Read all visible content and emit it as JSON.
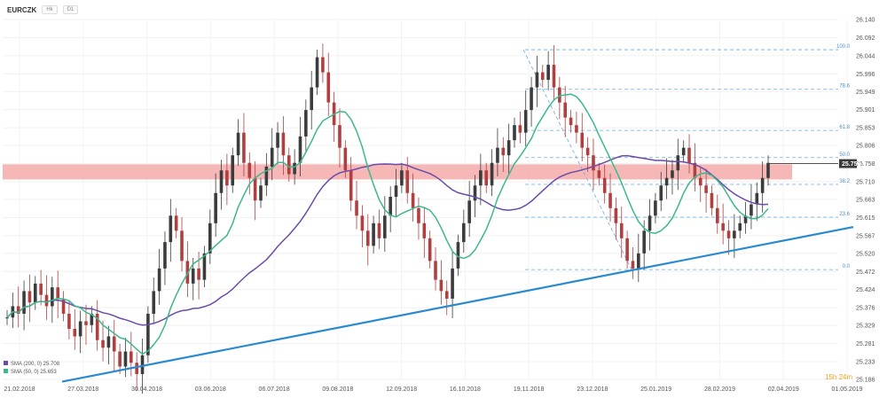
{
  "toolbar": {
    "symbol": "EURCZK",
    "chip1": "Hk",
    "chip2": "D1"
  },
  "timer": "15h 24m",
  "colors": {
    "bull": "#3c3c3c",
    "bear": "#b04040",
    "zone": "#f4a5a5",
    "sma200": "#6a4ca8",
    "sma50": "#3cb88c",
    "trend": "#2a8ad0",
    "fib": "#6aaae0",
    "tag": "#3a3a3a"
  },
  "legend": [
    {
      "label": "SMA (200, 0) 25.708",
      "color": "#6a4ca8"
    },
    {
      "label": "SMA (50, 0) 25.653",
      "color": "#3cb88c"
    }
  ],
  "chart_data": {
    "type": "candlestick",
    "symbol": "EURCZK",
    "x_ticks": [
      "21.02.2018",
      "27.03.2018",
      "30.04.2018",
      "03.06.2018",
      "06.07.2018",
      "09.08.2018",
      "12.09.2018",
      "16.10.2018",
      "19.11.2018",
      "23.12.2018",
      "25.01.2019",
      "28.02.2019",
      "02.04.2019",
      "01.05.2019"
    ],
    "y_ticks": [
      25.186,
      25.233,
      25.281,
      25.329,
      25.376,
      25.424,
      25.472,
      25.52,
      25.567,
      25.615,
      25.663,
      25.71,
      25.758,
      25.806,
      25.853,
      25.901,
      25.949,
      25.996,
      26.044,
      26.092,
      26.14
    ],
    "ylim": [
      25.186,
      26.14
    ],
    "last_price": 25.758,
    "resistance_zone": [
      25.716,
      25.756
    ],
    "trendline": [
      {
        "x": "27.03.2018",
        "y": 25.18
      },
      {
        "x": "end",
        "y": 25.59
      }
    ],
    "fibonacci": [
      {
        "label": "100.0",
        "value": 26.06
      },
      {
        "label": "78.6",
        "value": 25.955
      },
      {
        "label": "61.8",
        "value": 25.846
      },
      {
        "label": "50.0",
        "value": 25.774
      },
      {
        "label": "38.2",
        "value": 25.703
      },
      {
        "label": "23.6",
        "value": 25.616
      },
      {
        "label": "0.0",
        "value": 25.477
      }
    ],
    "close_series": [
      25.35,
      25.38,
      25.36,
      25.42,
      25.39,
      25.44,
      25.41,
      25.38,
      25.43,
      25.4,
      25.36,
      25.32,
      25.3,
      25.34,
      25.33,
      25.36,
      25.29,
      25.27,
      25.3,
      25.26,
      25.22,
      25.26,
      25.23,
      25.2,
      25.25,
      25.36,
      25.42,
      25.48,
      25.55,
      25.62,
      25.58,
      25.5,
      25.44,
      25.48,
      25.45,
      25.52,
      25.6,
      25.68,
      25.74,
      25.7,
      25.78,
      25.84,
      25.76,
      25.72,
      25.66,
      25.7,
      25.75,
      25.8,
      25.84,
      25.78,
      25.73,
      25.76,
      25.83,
      25.9,
      25.96,
      26.04,
      26.0,
      25.92,
      25.86,
      25.8,
      25.74,
      25.66,
      25.62,
      25.58,
      25.54,
      25.6,
      25.56,
      25.62,
      25.67,
      25.7,
      25.74,
      25.68,
      25.64,
      25.6,
      25.56,
      25.5,
      25.45,
      25.42,
      25.4,
      25.48,
      25.55,
      25.6,
      25.66,
      25.7,
      25.74,
      25.7,
      25.76,
      25.8,
      25.78,
      25.82,
      25.86,
      25.84,
      25.9,
      25.96,
      26.0,
      25.98,
      26.02,
      25.96,
      25.92,
      25.88,
      25.86,
      25.84,
      25.8,
      25.78,
      25.74,
      25.72,
      25.68,
      25.64,
      25.6,
      25.56,
      25.5,
      25.48,
      25.52,
      25.58,
      25.62,
      25.66,
      25.7,
      25.72,
      25.74,
      25.78,
      25.8,
      25.76,
      25.72,
      25.7,
      25.68,
      25.64,
      25.6,
      25.58,
      25.56,
      25.58,
      25.6,
      25.62,
      25.65,
      25.68,
      25.72,
      25.76
    ]
  }
}
